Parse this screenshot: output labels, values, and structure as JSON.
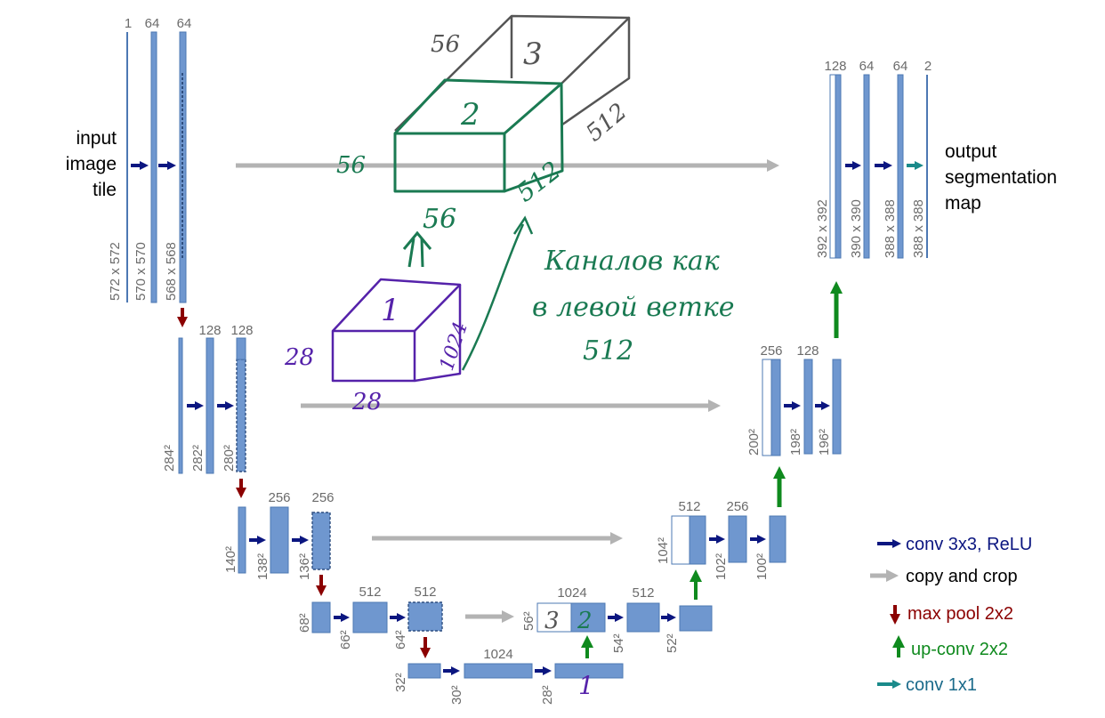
{
  "colors": {
    "map": "#6f97cf",
    "conv": "#0b1680",
    "copy": "#b3b3b3",
    "pool": "#8b0000",
    "upconv": "#0f8a1e",
    "conv1x1": "#1a8a8a",
    "annot_green": "#1a7a52",
    "annot_purple": "#5522aa",
    "annot_gray": "#555555"
  },
  "input_label": [
    "input",
    "image",
    "tile"
  ],
  "output_label": [
    "output",
    "segmentation",
    "map"
  ],
  "channels": {
    "l1": [
      "1",
      "64",
      "64"
    ],
    "l2": [
      "128",
      "128"
    ],
    "l3": [
      "256",
      "256"
    ],
    "l4": [
      "512",
      "512"
    ],
    "bottom": "1024",
    "r4": [
      "1024",
      "512"
    ],
    "r3": [
      "512",
      "256"
    ],
    "r2": [
      "256",
      "128"
    ],
    "r1": [
      "128",
      "64",
      "64",
      "2"
    ]
  },
  "sizes": {
    "l1": [
      "572 x 572",
      "570 x 570",
      "568 x 568"
    ],
    "l2": [
      "284²",
      "282²",
      "280²"
    ],
    "l3": [
      "140²",
      "138²",
      "136²"
    ],
    "l4": [
      "68²",
      "66²",
      "64²"
    ],
    "bottom": [
      "32²",
      "30²",
      "28²"
    ],
    "r4": [
      "56²",
      "54²",
      "52²"
    ],
    "r3": [
      "104²",
      "102²",
      "100²"
    ],
    "r2": [
      "200²",
      "198²",
      "196²"
    ],
    "r1": [
      "392 x 392",
      "390 x 390",
      "388 x 388",
      "388 x 388"
    ]
  },
  "legend": [
    {
      "icon": "conv-arrow-icon",
      "label": "conv 3x3, ReLU",
      "color": "#0b1680"
    },
    {
      "icon": "copy-arrow-icon",
      "label": "copy and crop",
      "color": "#000000"
    },
    {
      "icon": "pool-arrow-icon",
      "label": "max pool 2x2",
      "color": "#8b0000"
    },
    {
      "icon": "upconv-arrow-icon",
      "label": "up-conv 2x2",
      "color": "#0f8a1e"
    },
    {
      "icon": "conv1x1-arrow-icon",
      "label": "conv 1x1",
      "color": "#1a8a8a"
    }
  ],
  "annotations": {
    "box3": {
      "label": "3",
      "dim": "56",
      "depth": "512"
    },
    "box2": {
      "label": "2",
      "left": "56",
      "bottom": "56",
      "depth": "512"
    },
    "box1": {
      "label": "1",
      "left": "28",
      "bottom": "28",
      "depth": "1024"
    },
    "note": [
      "Каналов как",
      "в левой ветке",
      "512"
    ],
    "block_marks": {
      "r4_empty": "3",
      "r4_filled": "2",
      "bottom_last": "1"
    }
  }
}
